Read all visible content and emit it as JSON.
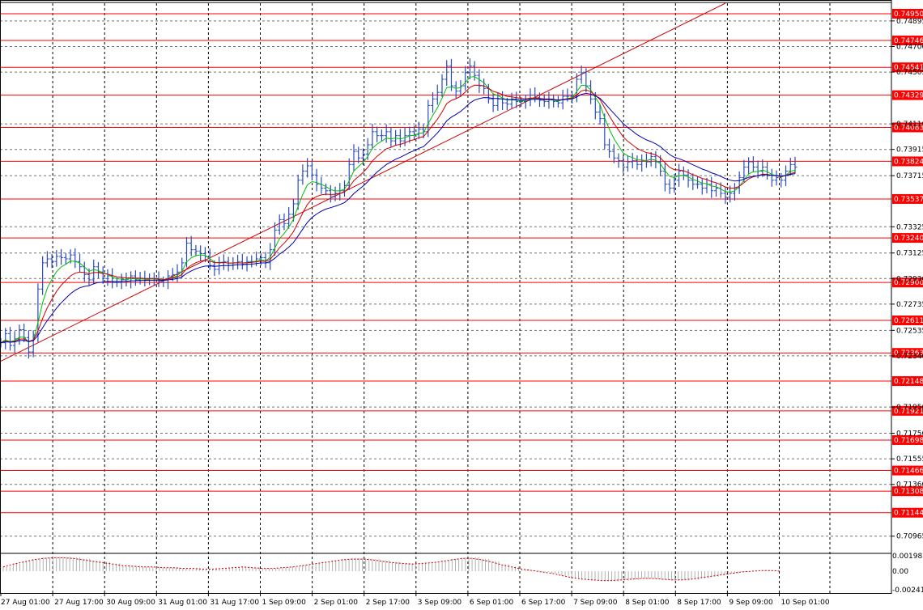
{
  "chart_data": [
    {
      "type": "line",
      "subtype": "candlestick-price-chart",
      "ylim": [
        0.7084,
        0.7503
      ],
      "grid": true,
      "y_tick_labels": [
        "0.74895",
        "0.74700",
        "0.74505",
        "0.74110",
        "0.73915",
        "0.73715",
        "0.73325",
        "0.73125",
        "0.72930",
        "0.72735",
        "0.72535",
        "0.72340",
        "0.71950",
        "0.71750",
        "0.71555",
        "0.71360",
        "0.70965"
      ],
      "y_ticks": [
        0.74895,
        0.747,
        0.74505,
        0.7411,
        0.73915,
        0.73715,
        0.73325,
        0.73125,
        0.7293,
        0.72735,
        0.72535,
        0.7234,
        0.7195,
        0.7175,
        0.71555,
        0.7136,
        0.70965
      ],
      "x_tick_labels": [
        "27 Aug 01:00",
        "27 Aug 17:00",
        "30 Aug 09:00",
        "31 Aug 01:00",
        "31 Aug 17:00",
        "1 Sep 09:00",
        "2 Sep 01:00",
        "2 Sep 17:00",
        "3 Sep 09:00",
        "6 Sep 01:00",
        "6 Sep 17:00",
        "7 Sep 09:00",
        "8 Sep 01:00",
        "8 Sep 17:00",
        "9 Sep 09:00",
        "10 Sep 01:00"
      ],
      "horizontal_levels": [
        {
          "value": "0.74950",
          "color": "#ff0000"
        },
        {
          "value": "0.74746",
          "color": "#ff0000"
        },
        {
          "value": "0.74541",
          "color": "#ff0000"
        },
        {
          "value": "0.74329",
          "color": "#ff0000"
        },
        {
          "value": "0.74083",
          "color": "#ff0000"
        },
        {
          "value": "0.73824",
          "color": "#ff0000"
        },
        {
          "value": "0.73537",
          "color": "#ff0000"
        },
        {
          "value": "0.73240",
          "color": "#ff0000"
        },
        {
          "value": "0.72900",
          "color": "#ff0000"
        },
        {
          "value": "0.72611",
          "color": "#ff0000"
        },
        {
          "value": "0.72363",
          "color": "#ff0000"
        },
        {
          "value": "0.72148",
          "color": "#ff0000"
        },
        {
          "value": "0.71921",
          "color": "#ff0000"
        },
        {
          "value": "0.71698",
          "color": "#ff0000"
        },
        {
          "value": "0.71466",
          "color": "#ff0000"
        },
        {
          "value": "0.71308",
          "color": "#ff0000"
        },
        {
          "value": "0.71144",
          "color": "#ff0000"
        }
      ],
      "trendline": {
        "from": [
          0,
          0.723
        ],
        "to": [
          156,
          0.7503
        ],
        "color": "#cc0000"
      },
      "series": [
        {
          "role": "price",
          "color": "#2a4bbf",
          "values": [
            0.7244,
            0.7251,
            0.7242,
            0.7247,
            0.7254,
            0.7248,
            0.7237,
            0.725,
            0.7285,
            0.7305,
            0.7308,
            0.7306,
            0.731,
            0.7309,
            0.7308,
            0.7311,
            0.7306,
            0.7302,
            0.7296,
            0.7292,
            0.7302,
            0.7298,
            0.7293,
            0.7295,
            0.729,
            0.729,
            0.7292,
            0.7291,
            0.7295,
            0.7292,
            0.7293,
            0.7292,
            0.7293,
            0.7293,
            0.7291,
            0.729,
            0.7295,
            0.7296,
            0.7298,
            0.7305,
            0.732,
            0.7315,
            0.7314,
            0.7312,
            0.731,
            0.7303,
            0.73,
            0.7305,
            0.7306,
            0.7303,
            0.7305,
            0.7306,
            0.7304,
            0.7306,
            0.7306,
            0.7308,
            0.7309,
            0.7305,
            0.7315,
            0.733,
            0.7338,
            0.7335,
            0.7342,
            0.735,
            0.7368,
            0.7375,
            0.7379,
            0.7372,
            0.7365,
            0.7362,
            0.736,
            0.7356,
            0.7358,
            0.736,
            0.7364,
            0.738,
            0.739,
            0.7385,
            0.7388,
            0.7395,
            0.7405,
            0.7402,
            0.7402,
            0.7405,
            0.7398,
            0.7402,
            0.7398,
            0.7402,
            0.7405,
            0.7403,
            0.7407,
            0.7405,
            0.7425,
            0.743,
            0.7435,
            0.7445,
            0.7455,
            0.744,
            0.7436,
            0.744,
            0.745,
            0.7455,
            0.7448,
            0.744,
            0.7438,
            0.743,
            0.7425,
            0.743,
            0.7427,
            0.7426,
            0.743,
            0.7428,
            0.7428,
            0.7429,
            0.7433,
            0.7431,
            0.7429,
            0.7428,
            0.743,
            0.7428,
            0.7427,
            0.7432,
            0.7432,
            0.7432,
            0.7445,
            0.745,
            0.744,
            0.743,
            0.742,
            0.7415,
            0.7395,
            0.739,
            0.7385,
            0.7383,
            0.7378,
            0.7382,
            0.7383,
            0.738,
            0.7383,
            0.7382,
            0.7386,
            0.7382,
            0.7375,
            0.7365,
            0.7362,
            0.7368,
            0.7375,
            0.7372,
            0.7368,
            0.7365,
            0.7365,
            0.7362,
            0.7365,
            0.736,
            0.7362,
            0.7358,
            0.7355,
            0.7358,
            0.7362,
            0.737,
            0.7378,
            0.7382,
            0.7378,
            0.7375,
            0.7378,
            0.7372,
            0.7368,
            0.737,
            0.7368,
            0.7375,
            0.738,
            0.7378
          ]
        },
        {
          "role": "ma-fast",
          "color": "#00c000"
        },
        {
          "role": "ma-mid",
          "color": "#d00000"
        },
        {
          "role": "ma-slow",
          "color": "#0000b0"
        }
      ],
      "oscillator": {
        "y_tick_labels": [
          "0.001987",
          "0.00",
          "-0.00241"
        ],
        "values": [
          0.0006,
          0.001,
          0.0013,
          0.0016,
          0.0018,
          0.0019,
          0.0019,
          0.0018,
          0.0016,
          0.0014,
          0.0012,
          0.001,
          0.0008,
          0.0007,
          0.0006,
          0.0006,
          0.0005,
          0.0005,
          0.0004,
          0.0004,
          0.0003,
          0.0003,
          0.0004,
          0.0005,
          0.0006,
          0.0005,
          0.0004,
          0.0004,
          0.0005,
          0.0006,
          0.0008,
          0.001,
          0.0012,
          0.0014,
          0.0016,
          0.0017,
          0.0017,
          0.0016,
          0.0014,
          0.0012,
          0.0011,
          0.001,
          0.0011,
          0.0012,
          0.0014,
          0.0016,
          0.0018,
          0.0018,
          0.0016,
          0.0013,
          0.0009,
          0.0006,
          0.0003,
          0.0001,
          -0.0001,
          -0.0003,
          -0.0006,
          -0.0009,
          -0.0011,
          -0.0012,
          -0.0013,
          -0.0013,
          -0.0012,
          -0.0011,
          -0.001,
          -0.001,
          -0.0011,
          -0.0012,
          -0.0012,
          -0.0011,
          -0.0009,
          -0.0007,
          -0.0005,
          -0.0003,
          -0.0001,
          0.0,
          0.0001,
          0.0001,
          0.0
        ]
      }
    }
  ]
}
